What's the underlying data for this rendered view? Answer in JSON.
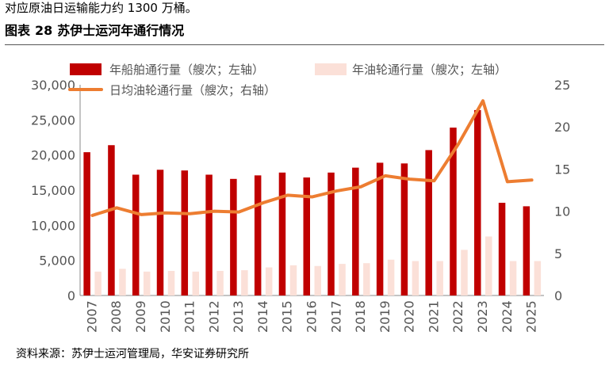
{
  "header": {
    "top_text": "对应原油日运输能力约 1300 万桶。",
    "figure_label": "图表",
    "figure_number": "28",
    "figure_title": "苏伊士运河年通行情况"
  },
  "source": "资料来源：苏伊士运河管理局，华安证券研究所",
  "colors": {
    "ships": "#c00000",
    "tankers": "#fbe0d8",
    "daily": "#ed7d31"
  },
  "chart_data": {
    "type": "bar+line",
    "categories": [
      "2007",
      "2008",
      "2009",
      "2010",
      "2011",
      "2012",
      "2013",
      "2014",
      "2015",
      "2016",
      "2017",
      "2018",
      "2019",
      "2020",
      "2021",
      "2022",
      "2023",
      "2024",
      "2025"
    ],
    "series": [
      {
        "name": "年船舶通行量（艘次；左轴）",
        "type": "bar",
        "axis": "left",
        "values": [
          20400,
          21400,
          17200,
          17900,
          17800,
          17200,
          16600,
          17100,
          17500,
          16800,
          17500,
          18200,
          18900,
          18800,
          20700,
          23900,
          26400,
          13200,
          12700
        ]
      },
      {
        "name": "年油轮通行量（艘次；左轴）",
        "type": "bar",
        "axis": "left",
        "values": [
          3400,
          3800,
          3400,
          3500,
          3400,
          3500,
          3600,
          4000,
          4300,
          4200,
          4500,
          4600,
          5100,
          4900,
          4900,
          6500,
          8400,
          4900,
          4900
        ]
      },
      {
        "name": "日均油轮通行量（艘次；右轴）",
        "type": "line",
        "axis": "right",
        "values": [
          9.5,
          10.4,
          9.6,
          9.8,
          9.7,
          10.0,
          9.9,
          11.0,
          11.9,
          11.7,
          12.4,
          12.9,
          14.2,
          13.8,
          13.6,
          18.0,
          23.1,
          13.5,
          13.7
        ]
      }
    ],
    "y_left": {
      "min": 0,
      "max": 30000,
      "ticks": [
        "0",
        "5,000",
        "10,000",
        "15,000",
        "20,000",
        "25,000",
        "30,000"
      ]
    },
    "y_right": {
      "min": 0,
      "max": 25,
      "ticks": [
        "0",
        "5",
        "10",
        "15",
        "20",
        "25"
      ]
    },
    "legend_position": "top",
    "grid": false
  }
}
